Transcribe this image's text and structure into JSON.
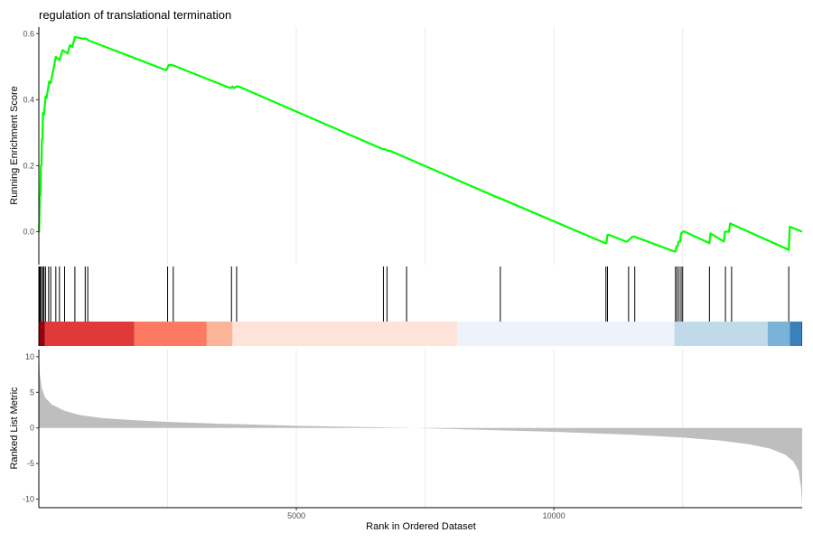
{
  "chart_data": {
    "title": "regulation of translational termination",
    "type": "line",
    "panels": [
      {
        "name": "enrichment",
        "type": "line",
        "ylabel": "Running Enrichment Score",
        "ylim": [
          -0.1,
          0.62
        ],
        "yticks": [
          0.0,
          0.2,
          0.4,
          0.6
        ],
        "ytick_labels": [
          "0.0",
          "0.2",
          "0.4",
          "0.6"
        ],
        "line_color": "#00ff00",
        "x": [
          0,
          5,
          20,
          30,
          40,
          50,
          60,
          70,
          80,
          100,
          130,
          150,
          200,
          230,
          280,
          330,
          400,
          460,
          510,
          560,
          600,
          650,
          700,
          860,
          900,
          920,
          960,
          2460,
          2480,
          2520,
          2550,
          2580,
          2590,
          3720,
          3760,
          3790,
          3840,
          3880,
          6680,
          6710,
          6780,
          6820,
          8960,
          8970,
          11000,
          11020,
          11040,
          11080,
          11400,
          11420,
          11530,
          11560,
          12340,
          12360,
          12380,
          12400,
          12420,
          12450,
          12470,
          12480,
          12500,
          12520,
          12540,
          13020,
          13040,
          13300,
          13320,
          13400,
          13420,
          14560,
          14580,
          14820
        ],
        "y": [
          0.0,
          0.0,
          0.11,
          0.11,
          0.2,
          0.2,
          0.28,
          0.28,
          0.36,
          0.355,
          0.41,
          0.405,
          0.455,
          0.45,
          0.49,
          0.53,
          0.52,
          0.55,
          0.545,
          0.54,
          0.565,
          0.56,
          0.59,
          0.585,
          0.585,
          0.585,
          0.58,
          0.49,
          0.49,
          0.505,
          0.505,
          0.505,
          0.505,
          0.435,
          0.44,
          0.435,
          0.44,
          0.44,
          0.25,
          0.25,
          0.245,
          0.245,
          0.1,
          0.1,
          -0.035,
          -0.035,
          -0.01,
          -0.01,
          -0.03,
          -0.03,
          -0.015,
          -0.015,
          -0.06,
          -0.06,
          -0.045,
          -0.045,
          -0.03,
          -0.03,
          -0.005,
          -0.005,
          0.0,
          0.0,
          0.0,
          -0.035,
          -0.005,
          -0.03,
          0.0,
          0.0,
          0.025,
          -0.055,
          0.015,
          0.0
        ]
      },
      {
        "name": "hits",
        "type": "rug",
        "hits": [
          5,
          15,
          30,
          50,
          80,
          100,
          130,
          190,
          230,
          330,
          400,
          500,
          700,
          900,
          950,
          2500,
          2610,
          3740,
          3840,
          6690,
          6760,
          7140,
          8960,
          11010,
          11040,
          11450,
          11570,
          12360,
          12390,
          12430,
          12470,
          12500,
          13020,
          13330,
          13450,
          14560
        ],
        "color_bands": [
          {
            "start": 0,
            "end": 120,
            "color": "#99000d"
          },
          {
            "start": 120,
            "end": 1850,
            "color": "#e0393a"
          },
          {
            "start": 1850,
            "end": 3260,
            "color": "#fc7a61"
          },
          {
            "start": 3260,
            "end": 3760,
            "color": "#fcb499"
          },
          {
            "start": 3760,
            "end": 8120,
            "color": "#fee4d8"
          },
          {
            "start": 8120,
            "end": 12340,
            "color": "#edf2fb"
          },
          {
            "start": 12340,
            "end": 14150,
            "color": "#c1daea"
          },
          {
            "start": 14150,
            "end": 14580,
            "color": "#7ab2d8"
          },
          {
            "start": 14580,
            "end": 14800,
            "color": "#3a80bb"
          },
          {
            "start": 14800,
            "end": 14820,
            "color": "#08519c"
          }
        ]
      },
      {
        "name": "ranked-metric",
        "type": "area",
        "ylabel": "Ranked List Metric",
        "ylim": [
          -11.2,
          11
        ],
        "yticks": [
          10,
          5,
          0,
          -5,
          -10
        ],
        "ytick_labels": [
          "10",
          "5",
          "0",
          "-5",
          "-10"
        ],
        "fill_color": "#bebebe",
        "x": [
          0,
          20,
          60,
          120,
          250,
          500,
          800,
          1200,
          1800,
          2500,
          3500,
          5000,
          6500,
          7300,
          8500,
          10000,
          11500,
          12500,
          13200,
          13800,
          14200,
          14500,
          14650,
          14750,
          14800,
          14820
        ],
        "y": [
          10.2,
          7.5,
          5.5,
          4.3,
          3.3,
          2.4,
          1.8,
          1.4,
          1.1,
          0.85,
          0.6,
          0.3,
          0.1,
          0.0,
          -0.25,
          -0.55,
          -0.95,
          -1.35,
          -1.75,
          -2.3,
          -2.9,
          -3.8,
          -4.7,
          -6.0,
          -8.5,
          -11.0
        ]
      }
    ],
    "xlabel": "Rank in Ordered Dataset",
    "xlim": [
      0,
      14820
    ],
    "xticks": [
      5000,
      10000
    ],
    "xtick_labels": [
      "5000",
      "10000"
    ],
    "grid": true
  }
}
